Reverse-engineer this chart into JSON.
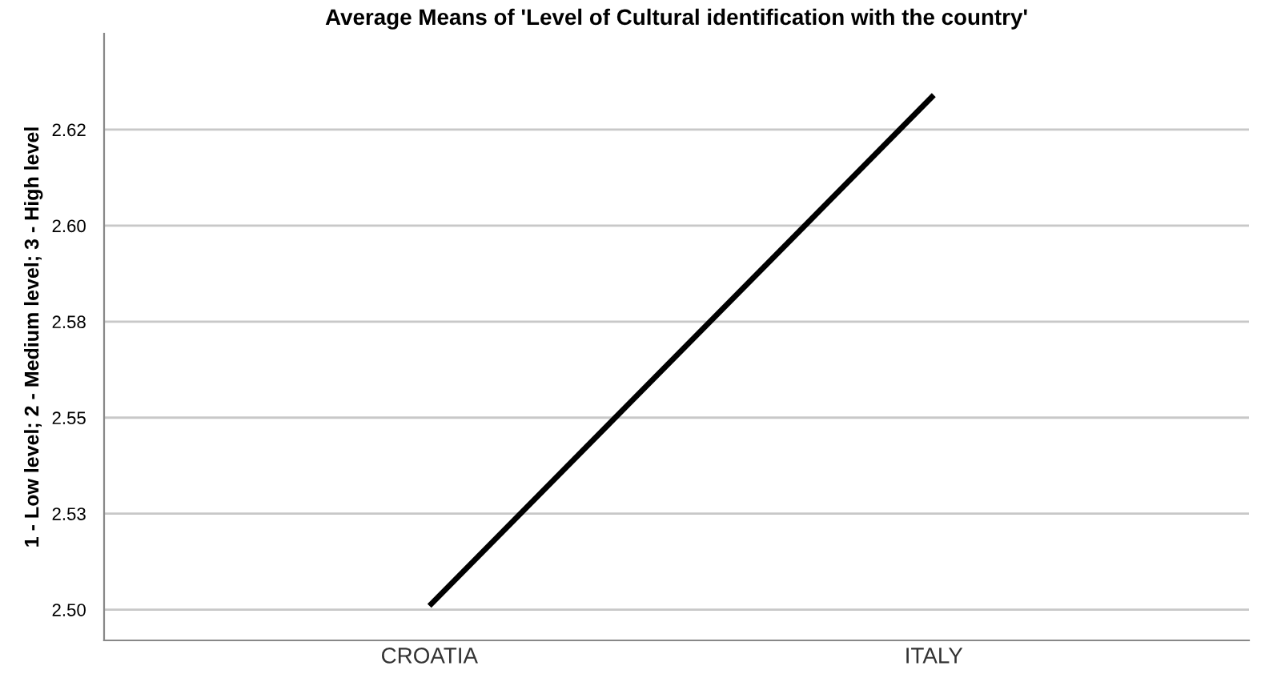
{
  "chart_data": {
    "type": "line",
    "title": "Average Means of 'Level of Cultural identification with the country'",
    "ylabel": "1 - Low level; 2 - Medium level; 3 - High level",
    "categories": [
      "CROATIA",
      "ITALY"
    ],
    "series": [
      {
        "color": "#000000",
        "values": [
          2.501,
          2.634
        ]
      }
    ],
    "ylim": [
      2.492,
      2.65
    ],
    "yticks": [
      {
        "value": 2.5,
        "label": "2.50"
      },
      {
        "value": 2.525,
        "label": "2.53"
      },
      {
        "value": 2.55,
        "label": "2.55"
      },
      {
        "value": 2.575,
        "label": "2.58"
      },
      {
        "value": 2.6,
        "label": "2.60"
      },
      {
        "value": 2.625,
        "label": "2.62"
      }
    ],
    "grid": "y",
    "marker": "none",
    "line_style": "solid"
  }
}
